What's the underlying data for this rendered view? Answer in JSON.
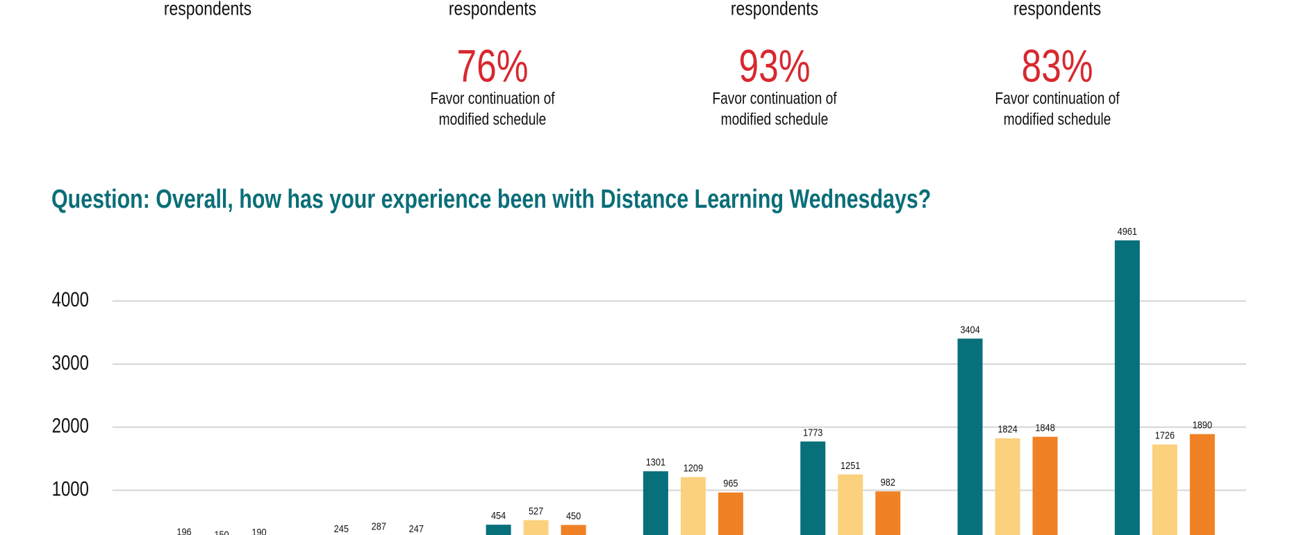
{
  "stats": [
    {
      "label": "respondents"
    },
    {
      "label": "respondents",
      "percent": "76%",
      "note": [
        "Favor continuation of",
        "modified schedule"
      ]
    },
    {
      "label": "respondents",
      "percent": "93%",
      "note": [
        "Favor continuation of",
        "modified schedule"
      ]
    },
    {
      "label": "respondents",
      "percent": "83%",
      "note": [
        "Favor continuation of",
        "modified schedule"
      ]
    }
  ],
  "chart_data": {
    "type": "bar",
    "title": "Question: Overall, how has your experience been with Distance Learning Wednesdays?",
    "categories": [
      null,
      null,
      null,
      null,
      null,
      null,
      null
    ],
    "series": [
      {
        "color": "#07707a",
        "values": [
          196,
          245,
          454,
          1301,
          1773,
          3404,
          4961
        ]
      },
      {
        "color": "#fbd17e",
        "values": [
          150,
          287,
          527,
          1209,
          1251,
          1824,
          1726
        ]
      },
      {
        "color": "#f08124",
        "values": [
          190,
          247,
          450,
          965,
          982,
          1848,
          1890
        ]
      }
    ],
    "ylim": [
      0,
      5000
    ],
    "yticks": [
      1000,
      2000,
      3000,
      4000
    ],
    "grid": true
  }
}
